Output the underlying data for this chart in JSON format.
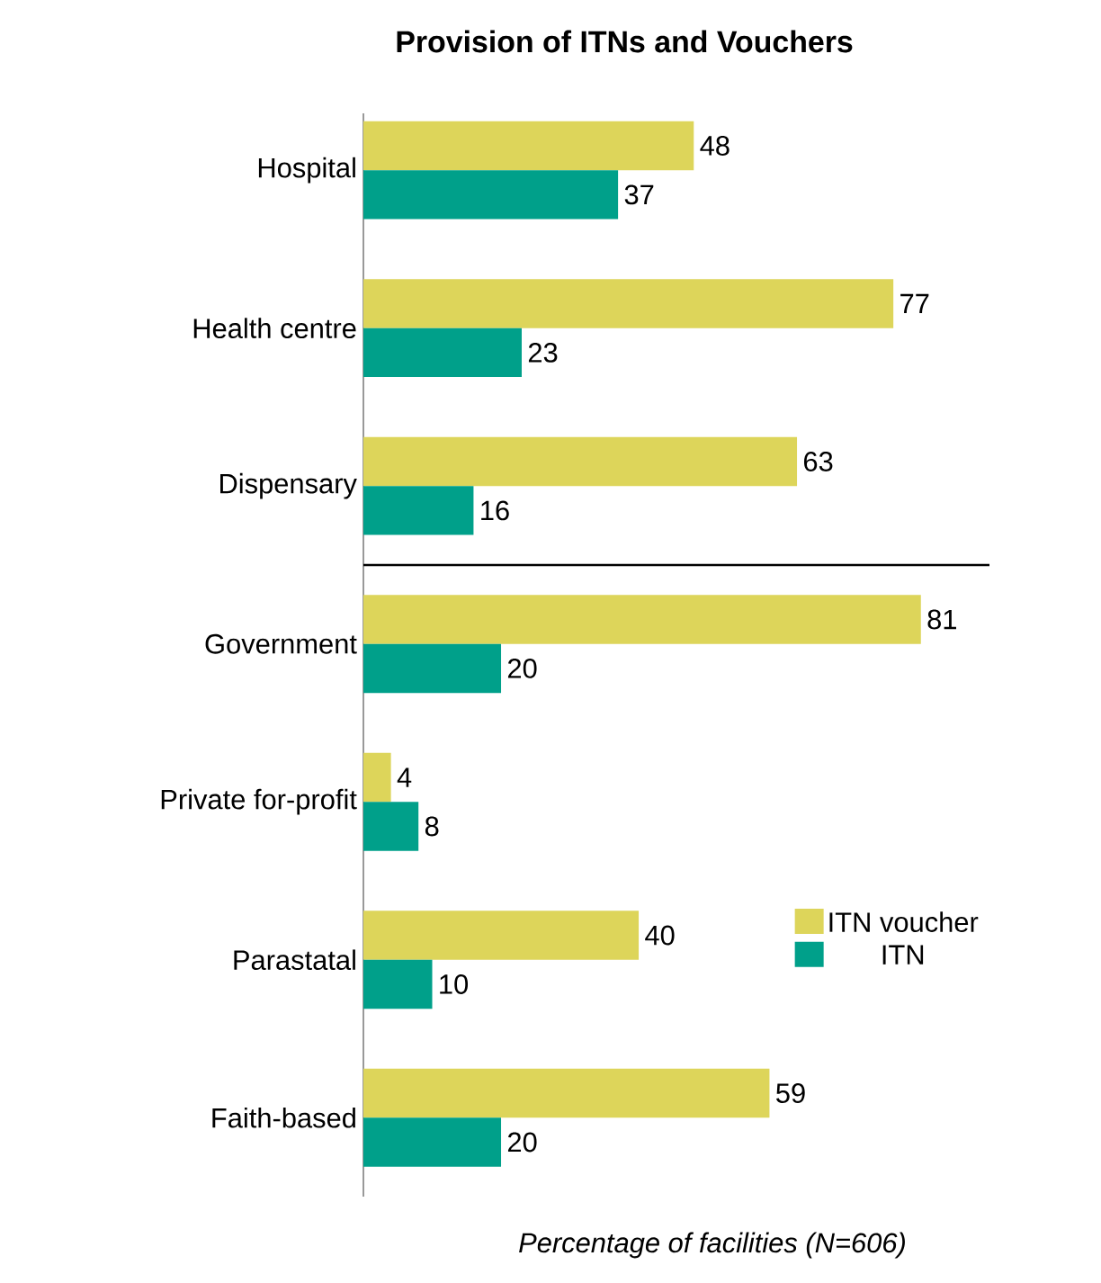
{
  "chart_data": {
    "type": "bar",
    "orientation": "horizontal",
    "title": "Provision of ITNs and Vouchers",
    "xlabel": "Percentage of facilities (N=606)",
    "categories": [
      "Hospital",
      "Health centre",
      "Dispensary",
      "Government",
      "Private for-profit",
      "Parastatal",
      "Faith-based"
    ],
    "series": [
      {
        "name": "ITN voucher",
        "color": "#ddd55a",
        "values": [
          48,
          77,
          63,
          81,
          4,
          40,
          59
        ]
      },
      {
        "name": "ITN",
        "color": "#00a08a",
        "values": [
          37,
          23,
          16,
          20,
          8,
          10,
          20
        ]
      }
    ],
    "data_labels": true,
    "legend": "right"
  }
}
